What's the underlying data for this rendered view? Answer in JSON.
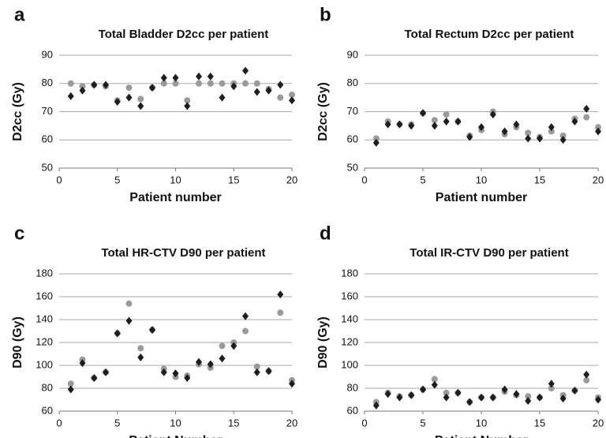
{
  "chart_data": [
    {
      "type": "scatter",
      "panel": "a",
      "title": "Total Bladder D2cc per patient",
      "xlabel": "Patient number",
      "ylabel": "D2cc (Gy)",
      "x": [
        1,
        2,
        3,
        4,
        5,
        6,
        7,
        8,
        9,
        10,
        11,
        12,
        13,
        14,
        15,
        16,
        17,
        18,
        19,
        20
      ],
      "xlim": [
        0,
        20
      ],
      "xticks": [
        0,
        5,
        10,
        15,
        20
      ],
      "ylim": [
        50,
        90
      ],
      "yticks": [
        50,
        60,
        70,
        80,
        90
      ],
      "grid": true,
      "series": [
        {
          "color": "#9a9a9a",
          "marker": "circle",
          "values": [
            80,
            79,
            79.5,
            79,
            74,
            78.5,
            74.5,
            78.5,
            80,
            80,
            74,
            80,
            80,
            80,
            80,
            80,
            80,
            78,
            75,
            76
          ]
        },
        {
          "color": "#1e1e1e",
          "marker": "diamond",
          "values": [
            75.5,
            77.5,
            79.5,
            79.5,
            73.5,
            75,
            72,
            78.5,
            82,
            82,
            72,
            82.5,
            82.5,
            75,
            79,
            84.5,
            77,
            77.5,
            79.5,
            74
          ]
        }
      ]
    },
    {
      "type": "scatter",
      "panel": "b",
      "title": "Total Rectum D2cc per patient",
      "xlabel": "Patient number",
      "ylabel": "D2cc (Gy)",
      "x": [
        1,
        2,
        3,
        4,
        5,
        6,
        7,
        8,
        9,
        10,
        11,
        12,
        13,
        14,
        15,
        16,
        17,
        18,
        19,
        20
      ],
      "xlim": [
        0,
        20
      ],
      "xticks": [
        0,
        5,
        10,
        15,
        20
      ],
      "ylim": [
        50,
        90
      ],
      "yticks": [
        50,
        60,
        70,
        80,
        90
      ],
      "grid": true,
      "series": [
        {
          "color": "#9a9a9a",
          "marker": "circle",
          "values": [
            60.5,
            66.5,
            65.5,
            65.5,
            69.5,
            67,
            69,
            66.5,
            61.5,
            63.5,
            70,
            62,
            64.5,
            62.5,
            61,
            63,
            61.5,
            67.5,
            68,
            64.5
          ]
        },
        {
          "color": "#1e1e1e",
          "marker": "diamond",
          "values": [
            59,
            65.5,
            65.5,
            65,
            69.5,
            65,
            66.5,
            66.5,
            61,
            64.5,
            69,
            63,
            65.5,
            60.5,
            60.5,
            64.5,
            60,
            66.5,
            71,
            63
          ]
        }
      ]
    },
    {
      "type": "scatter",
      "panel": "c",
      "title": "Total HR-CTV D90 per patient",
      "xlabel": "Patient Number",
      "ylabel": "D90 (Gy)",
      "x": [
        1,
        2,
        3,
        4,
        5,
        6,
        7,
        8,
        9,
        10,
        11,
        12,
        13,
        14,
        15,
        16,
        17,
        18,
        19,
        20
      ],
      "xlim": [
        0,
        20
      ],
      "xticks": [
        0,
        5,
        10,
        15,
        20
      ],
      "ylim": [
        60,
        180
      ],
      "yticks": [
        60,
        80,
        100,
        120,
        140,
        160,
        180
      ],
      "grid": true,
      "series": [
        {
          "color": "#9a9a9a",
          "marker": "circle",
          "values": [
            84,
            105,
            89,
            94,
            128,
            154,
            115,
            131,
            97,
            90,
            91,
            101,
            98,
            117,
            120,
            130,
            99,
            95,
            146,
            87
          ]
        },
        {
          "color": "#1e1e1e",
          "marker": "diamond",
          "values": [
            79,
            102,
            89,
            94,
            128,
            139,
            107,
            131,
            94,
            93,
            89,
            103,
            101,
            106,
            117,
            143,
            94,
            95,
            162,
            84
          ]
        }
      ]
    },
    {
      "type": "scatter",
      "panel": "d",
      "title": "Total IR-CTV D90 per patient",
      "xlabel": "Patient Number",
      "ylabel": "D90 (Gy)",
      "x": [
        1,
        2,
        3,
        4,
        5,
        6,
        7,
        8,
        9,
        10,
        11,
        12,
        13,
        14,
        15,
        16,
        17,
        18,
        19,
        20
      ],
      "xlim": [
        0,
        20
      ],
      "xticks": [
        0,
        5,
        10,
        15,
        20
      ],
      "ylim": [
        60,
        180
      ],
      "yticks": [
        60,
        80,
        100,
        120,
        140,
        160,
        180
      ],
      "grid": true,
      "series": [
        {
          "color": "#9a9a9a",
          "marker": "circle",
          "values": [
            68,
            76,
            73,
            74,
            79,
            88,
            76,
            76,
            68,
            72,
            72,
            77,
            74,
            73,
            72,
            80,
            74,
            78,
            87,
            72
          ]
        },
        {
          "color": "#1e1e1e",
          "marker": "diamond",
          "values": [
            65,
            75,
            72,
            74,
            79,
            83,
            72,
            76,
            68,
            72,
            72,
            79,
            75,
            69,
            72,
            84,
            71,
            78,
            92,
            70
          ]
        }
      ]
    }
  ]
}
